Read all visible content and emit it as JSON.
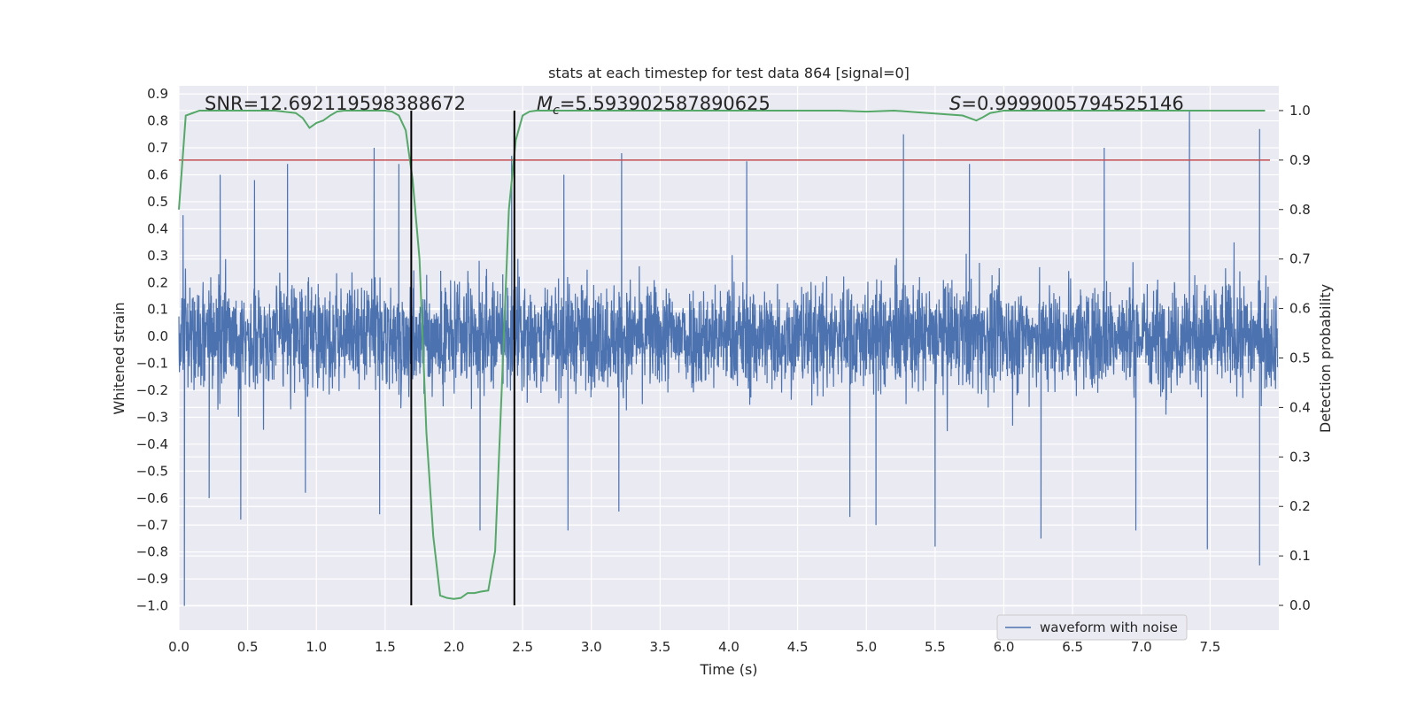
{
  "chart_data": {
    "type": "line",
    "title": "stats at each timestep for test data 864 [signal=0]",
    "xlabel": "Time (s)",
    "ylabel": "Whitened strain",
    "y2label": "Detection probability",
    "xlim": [
      0.0,
      8.0
    ],
    "ylim": [
      -1.09,
      0.93
    ],
    "y2lim": [
      -0.05,
      1.05
    ],
    "x_ticks": [
      "0.0",
      "0.5",
      "1.0",
      "1.5",
      "2.0",
      "2.5",
      "3.0",
      "3.5",
      "4.0",
      "4.5",
      "5.0",
      "5.5",
      "6.0",
      "6.5",
      "7.0",
      "7.5"
    ],
    "y_ticks": [
      "0.9",
      "0.8",
      "0.7",
      "0.6",
      "0.5",
      "0.4",
      "0.3",
      "0.2",
      "0.1",
      "0.0",
      "−0.1",
      "−0.2",
      "−0.3",
      "−0.4",
      "−0.5",
      "−0.6",
      "−0.7",
      "−0.8",
      "−0.9",
      "−1.0"
    ],
    "y2_ticks": [
      "1.0",
      "0.9",
      "0.8",
      "0.7",
      "0.6",
      "0.5",
      "0.4",
      "0.3",
      "0.2",
      "0.1",
      "0.0"
    ],
    "grid": true,
    "legend": {
      "placement": "lower-right",
      "entries": [
        "waveform with noise"
      ]
    },
    "annotations": {
      "snr": "SNR=12.692119598388672",
      "mc_symbol": "M",
      "mc_sub": "c",
      "mc_value": "=5.593902587890625",
      "s_symbol": "S",
      "s_value": "=0.9999005794525146"
    },
    "series": [
      {
        "name": "waveform with noise",
        "color": "#4c72b0",
        "axis": "left",
        "description": "dense whitened strain noise, approx. ±0.3 core with spikes",
        "spikes_high": [
          [
            0.03,
            0.45
          ],
          [
            0.3,
            0.6
          ],
          [
            0.55,
            0.58
          ],
          [
            0.79,
            0.64
          ],
          [
            1.42,
            0.7
          ],
          [
            1.6,
            0.64
          ],
          [
            2.42,
            0.67
          ],
          [
            2.8,
            0.6
          ],
          [
            3.22,
            0.68
          ],
          [
            4.13,
            0.65
          ],
          [
            5.27,
            0.75
          ],
          [
            5.75,
            0.64
          ],
          [
            6.73,
            0.7
          ],
          [
            7.35,
            0.84
          ],
          [
            7.86,
            0.77
          ]
        ],
        "spikes_low": [
          [
            0.04,
            -1.0
          ],
          [
            0.22,
            -0.6
          ],
          [
            0.45,
            -0.68
          ],
          [
            0.92,
            -0.58
          ],
          [
            1.46,
            -0.66
          ],
          [
            2.19,
            -0.72
          ],
          [
            2.83,
            -0.72
          ],
          [
            3.2,
            -0.65
          ],
          [
            4.88,
            -0.67
          ],
          [
            5.07,
            -0.7
          ],
          [
            5.5,
            -0.78
          ],
          [
            6.27,
            -0.75
          ],
          [
            6.96,
            -0.72
          ],
          [
            7.48,
            -0.79
          ],
          [
            7.86,
            -0.85
          ]
        ]
      },
      {
        "name": "Detection probability",
        "color": "#55a868",
        "axis": "right",
        "x": [
          0.0,
          0.05,
          0.1,
          0.15,
          0.2,
          0.3,
          0.5,
          0.7,
          0.85,
          0.9,
          0.95,
          1.0,
          1.05,
          1.1,
          1.15,
          1.2,
          1.4,
          1.5,
          1.55,
          1.6,
          1.65,
          1.7,
          1.75,
          1.8,
          1.85,
          1.9,
          1.95,
          2.0,
          2.05,
          2.1,
          2.15,
          2.2,
          2.25,
          2.3,
          2.35,
          2.4,
          2.45,
          2.5,
          2.55,
          2.6,
          2.65,
          2.7,
          3.0,
          4.0,
          4.8,
          5.0,
          5.2,
          5.7,
          5.75,
          5.8,
          5.85,
          5.9,
          6.0,
          6.5,
          7.0,
          7.5,
          7.9
        ],
        "values": [
          0.8,
          0.99,
          0.995,
          1.0,
          1.0,
          1.0,
          1.0,
          1.0,
          0.995,
          0.985,
          0.965,
          0.975,
          0.98,
          0.99,
          0.998,
          1.0,
          1.0,
          1.0,
          0.998,
          0.99,
          0.96,
          0.86,
          0.7,
          0.35,
          0.14,
          0.02,
          0.015,
          0.013,
          0.015,
          0.025,
          0.025,
          0.028,
          0.03,
          0.11,
          0.45,
          0.8,
          0.94,
          0.99,
          0.998,
          1.0,
          1.0,
          1.0,
          1.0,
          1.0,
          1.0,
          0.998,
          1.0,
          0.99,
          0.985,
          0.98,
          0.987,
          0.995,
          1.0,
          1.0,
          1.0,
          1.0,
          1.0
        ]
      }
    ],
    "threshold": {
      "axis": "right",
      "value": 0.9,
      "color": "#c44e52"
    },
    "vlines": {
      "x": [
        1.69,
        2.44
      ],
      "color": "#000000"
    }
  }
}
